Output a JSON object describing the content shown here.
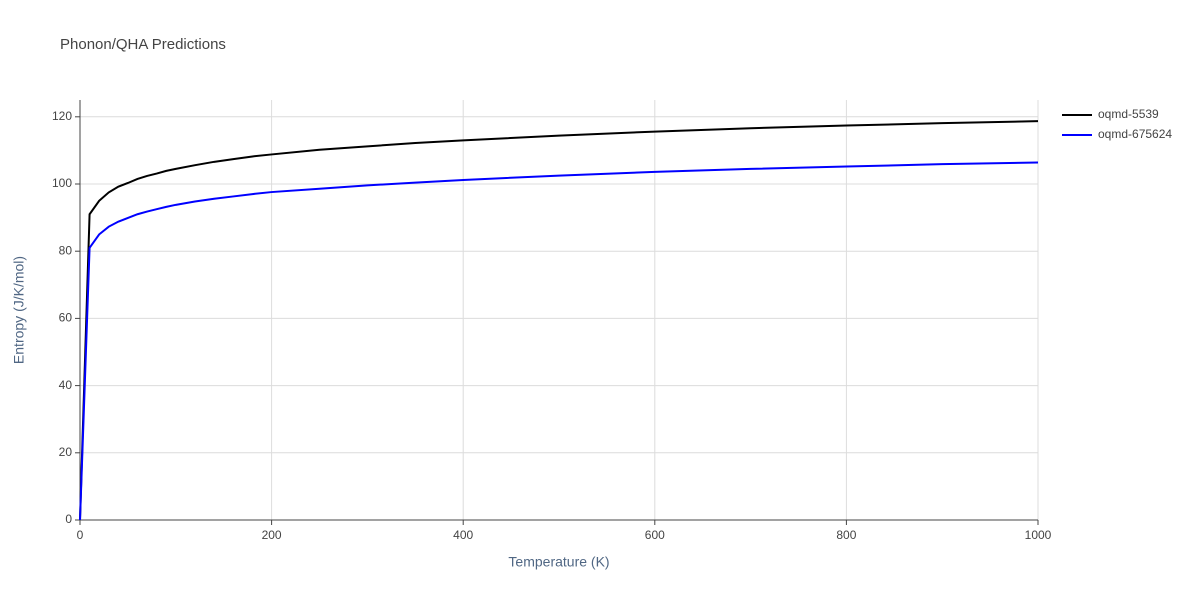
{
  "chart_data": {
    "type": "line",
    "title": "Phonon/QHA Predictions",
    "x_label": "Temperature (K)",
    "y_label": "Entropy (J/K/mol)",
    "x": [
      0,
      10,
      20,
      30,
      40,
      50,
      60,
      70,
      80,
      90,
      100,
      120,
      140,
      160,
      180,
      200,
      250,
      300,
      350,
      400,
      500,
      600,
      700,
      800,
      900,
      1000
    ],
    "series": [
      {
        "name": "oqmd-5539",
        "color": "#000000",
        "values": [
          0,
          91,
          95,
          97.5,
          99.2,
          100.3,
          101.5,
          102.4,
          103.1,
          103.9,
          104.5,
          105.6,
          106.6,
          107.4,
          108.2,
          108.8,
          110.2,
          111.2,
          112.2,
          113,
          114.4,
          115.6,
          116.6,
          117.4,
          118.1,
          118.7
        ]
      },
      {
        "name": "oqmd-675624",
        "color": "#0000ff",
        "values": [
          0,
          81,
          85,
          87.3,
          88.8,
          89.9,
          91,
          91.8,
          92.5,
          93.2,
          93.8,
          94.8,
          95.6,
          96.3,
          97,
          97.6,
          98.6,
          99.6,
          100.4,
          101.2,
          102.5,
          103.6,
          104.5,
          105.2,
          105.9,
          106.4
        ]
      }
    ],
    "xlim": [
      0,
      1000
    ],
    "xticks": [
      0,
      200,
      400,
      600,
      800,
      1000
    ],
    "ylim": [
      0,
      125
    ],
    "yticks": [
      0,
      20,
      40,
      60,
      80,
      100,
      120
    ],
    "grid": true,
    "legend": "right"
  }
}
